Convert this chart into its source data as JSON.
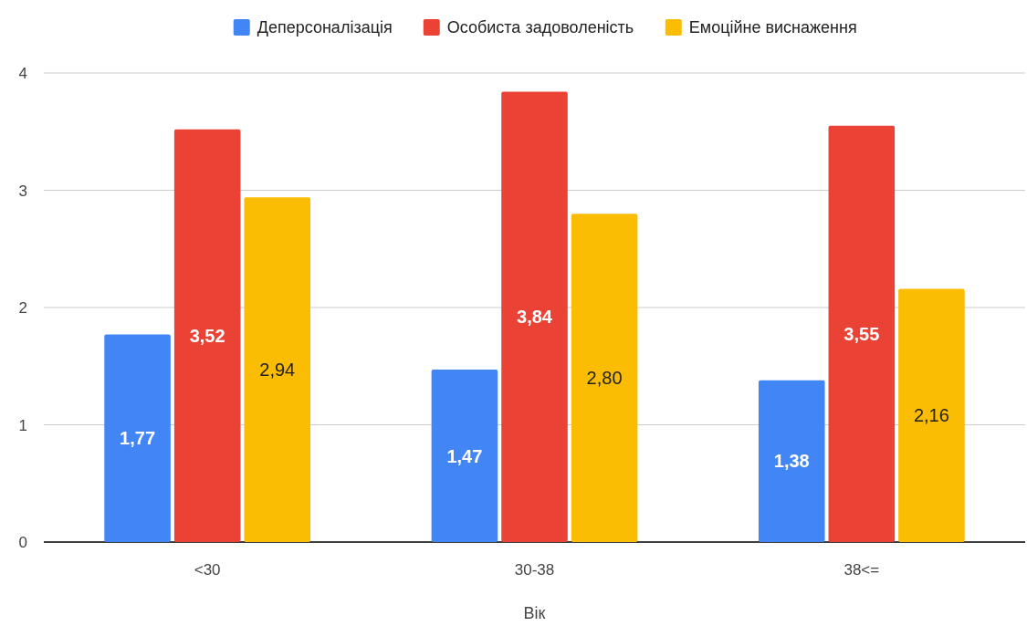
{
  "chart_data": {
    "type": "bar",
    "xlabel": "Вік",
    "categories": [
      "<30",
      "30-38",
      "38<="
    ],
    "series": [
      {
        "name": "Деперсоналізація",
        "color": "#4285f4",
        "values": [
          1.77,
          1.47,
          1.38
        ],
        "value_labels": [
          "1,77",
          "1,47",
          "1,38"
        ]
      },
      {
        "name": "Особиста задоволеність",
        "color": "#ea4335",
        "values": [
          3.52,
          3.84,
          3.55
        ],
        "value_labels": [
          "3,52",
          "3,84",
          "3,55"
        ]
      },
      {
        "name": "Емоційне виснаження",
        "color": "#fbbc04",
        "values": [
          2.94,
          2.8,
          2.16
        ],
        "value_labels": [
          "2,94",
          "2,80",
          "2,16"
        ]
      }
    ],
    "ylim": [
      0,
      4
    ],
    "yticks": [
      0,
      1,
      2,
      3,
      4
    ],
    "grid": "y",
    "legend": "top"
  }
}
